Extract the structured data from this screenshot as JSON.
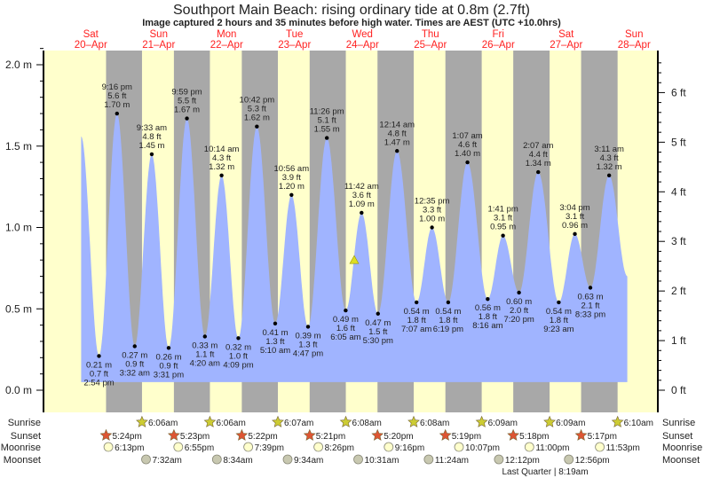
{
  "header": {
    "title": "Southport Main Beach: rising  ordinary tide at 0.8m (2.7ft)",
    "subtitle": "Image captured 2 hours and 35 minutes before high water. Times are AEST (UTC +10.0hrs)"
  },
  "colors": {
    "day": "#ffffcc",
    "night": "#a8a8a8",
    "tide": "#a0b4ff",
    "day_label": "#ff2020",
    "sunrise": "#cccc33",
    "sunset": "#dd5533",
    "moonrise": "#ffffcc",
    "moonset": "#c8c8b0"
  },
  "chart_data": {
    "type": "area",
    "title": "Southport Main Beach: rising  ordinary tide at 0.8m (2.7ft)",
    "time_unit": "hours since Sat 20-Apr 00:00 AEST",
    "days": [
      {
        "dow": "Sat",
        "date": "20–Apr"
      },
      {
        "dow": "Sun",
        "date": "21–Apr"
      },
      {
        "dow": "Mon",
        "date": "22–Apr"
      },
      {
        "dow": "Tue",
        "date": "23–Apr"
      },
      {
        "dow": "Wed",
        "date": "24–Apr"
      },
      {
        "dow": "Thu",
        "date": "25–Apr"
      },
      {
        "dow": "Fri",
        "date": "26–Apr"
      },
      {
        "dow": "Sat",
        "date": "27–Apr"
      },
      {
        "dow": "Sun",
        "date": "28–Apr"
      }
    ],
    "y_left": {
      "ticks": [
        "0.0 m",
        "0.5 m",
        "1.0 m",
        "1.5 m",
        "2.0 m"
      ],
      "values": [
        0,
        0.5,
        1.0,
        1.5,
        2.0
      ],
      "ylim": [
        -0.09,
        2.1
      ]
    },
    "y_right": {
      "ticks": [
        "0 ft",
        "1 ft",
        "2 ft",
        "3 ft",
        "4 ft",
        "5 ft",
        "6 ft"
      ],
      "values": [
        0,
        1,
        2,
        3,
        4,
        5,
        6
      ]
    },
    "curve_start": {
      "t": 8.6,
      "m": 1.56
    },
    "curve_end": {
      "t": 201.6,
      "m": 0.7
    },
    "extremes": [
      {
        "type": "low",
        "t": 14.9,
        "time": "2:54 pm",
        "ft": "0.7 ft",
        "m": "0.21 m",
        "v": 0.21
      },
      {
        "type": "high",
        "t": 21.27,
        "time": "9:16 pm",
        "ft": "5.6 ft",
        "m": "1.70 m",
        "v": 1.7
      },
      {
        "type": "low",
        "t": 27.53,
        "time": "3:32 am",
        "ft": "0.9 ft",
        "m": "0.27 m",
        "v": 0.27
      },
      {
        "type": "high",
        "t": 33.55,
        "time": "9:33 am",
        "ft": "4.8 ft",
        "m": "1.45 m",
        "v": 1.45
      },
      {
        "type": "low",
        "t": 39.52,
        "time": "3:31 pm",
        "ft": "0.9 ft",
        "m": "0.26 m",
        "v": 0.26
      },
      {
        "type": "high",
        "t": 45.98,
        "time": "9:59 pm",
        "ft": "5.5 ft",
        "m": "1.67 m",
        "v": 1.67
      },
      {
        "type": "low",
        "t": 52.33,
        "time": "4:20 am",
        "ft": "1.1 ft",
        "m": "0.33 m",
        "v": 0.33
      },
      {
        "type": "high",
        "t": 58.23,
        "time": "10:14 am",
        "ft": "4.3 ft",
        "m": "1.32 m",
        "v": 1.32
      },
      {
        "type": "low",
        "t": 64.15,
        "time": "4:09 pm",
        "ft": "1.0 ft",
        "m": "0.32 m",
        "v": 0.32
      },
      {
        "type": "high",
        "t": 70.7,
        "time": "10:42 pm",
        "ft": "5.3 ft",
        "m": "1.62 m",
        "v": 1.62
      },
      {
        "type": "low",
        "t": 77.17,
        "time": "5:10 am",
        "ft": "1.3 ft",
        "m": "0.41 m",
        "v": 0.41
      },
      {
        "type": "high",
        "t": 82.93,
        "time": "10:56 am",
        "ft": "3.9 ft",
        "m": "1.20 m",
        "v": 1.2
      },
      {
        "type": "low",
        "t": 88.78,
        "time": "4:47 pm",
        "ft": "1.3 ft",
        "m": "0.39 m",
        "v": 0.39
      },
      {
        "type": "high",
        "t": 95.43,
        "time": "11:26 pm",
        "ft": "5.1 ft",
        "m": "1.55 m",
        "v": 1.55
      },
      {
        "type": "low",
        "t": 102.08,
        "time": "6:05 am",
        "ft": "1.6 ft",
        "m": "0.49 m",
        "v": 0.49
      },
      {
        "type": "high",
        "t": 107.7,
        "time": "11:42 am",
        "ft": "3.6 ft",
        "m": "1.09 m",
        "v": 1.09
      },
      {
        "type": "low",
        "t": 113.5,
        "time": "5:30 pm",
        "ft": "1.5 ft",
        "m": "0.47 m",
        "v": 0.47
      },
      {
        "type": "high",
        "t": 120.23,
        "time": "12:14 am",
        "ft": "4.8 ft",
        "m": "1.47 m",
        "v": 1.47
      },
      {
        "type": "low",
        "t": 127.12,
        "time": "7:07 am",
        "ft": "1.8 ft",
        "m": "0.54 m",
        "v": 0.54
      },
      {
        "type": "high",
        "t": 132.58,
        "time": "12:35 pm",
        "ft": "3.3 ft",
        "m": "1.00 m",
        "v": 1.0
      },
      {
        "type": "low",
        "t": 138.32,
        "time": "6:19 pm",
        "ft": "1.8 ft",
        "m": "0.54 m",
        "v": 0.54
      },
      {
        "type": "high",
        "t": 145.12,
        "time": "1:07 am",
        "ft": "4.6 ft",
        "m": "1.40 m",
        "v": 1.4
      },
      {
        "type": "low",
        "t": 152.27,
        "time": "8:16 am",
        "ft": "1.8 ft",
        "m": "0.56 m",
        "v": 0.56
      },
      {
        "type": "high",
        "t": 157.68,
        "time": "1:41 pm",
        "ft": "3.1 ft",
        "m": "0.95 m",
        "v": 0.95
      },
      {
        "type": "low",
        "t": 163.33,
        "time": "7:20 pm",
        "ft": "2.0 ft",
        "m": "0.60 m",
        "v": 0.6
      },
      {
        "type": "high",
        "t": 170.12,
        "time": "2:07 am",
        "ft": "4.4 ft",
        "m": "1.34 m",
        "v": 1.34
      },
      {
        "type": "low",
        "t": 177.38,
        "time": "9:23 am",
        "ft": "1.8 ft",
        "m": "0.54 m",
        "v": 0.54
      },
      {
        "type": "high",
        "t": 183.07,
        "time": "3:04 pm",
        "ft": "3.1 ft",
        "m": "0.96 m",
        "v": 0.96
      },
      {
        "type": "low",
        "t": 188.55,
        "time": "8:33 pm",
        "ft": "2.1 ft",
        "m": "0.63 m",
        "v": 0.63
      },
      {
        "type": "high",
        "t": 195.18,
        "time": "3:11 am",
        "ft": "4.3 ft",
        "m": "1.32 m",
        "v": 1.32
      }
    ],
    "current": {
      "t": 105.1,
      "m": 0.8
    },
    "rows": {
      "labels": {
        "sunrise": "Sunrise",
        "sunset": "Sunset",
        "moonrise": "Moonrise",
        "moonset": "Moonset"
      },
      "sunrise": [
        {
          "t": 30.1,
          "label": "6:06am"
        },
        {
          "t": 54.1,
          "label": "6:06am"
        },
        {
          "t": 78.12,
          "label": "6:07am"
        },
        {
          "t": 102.13,
          "label": "6:08am"
        },
        {
          "t": 126.13,
          "label": "6:08am"
        },
        {
          "t": 150.15,
          "label": "6:09am"
        },
        {
          "t": 174.15,
          "label": "6:09am"
        },
        {
          "t": 198.17,
          "label": "6:10am"
        }
      ],
      "sunset": [
        {
          "t": 17.4,
          "label": "5:24pm"
        },
        {
          "t": 41.38,
          "label": "5:23pm"
        },
        {
          "t": 65.37,
          "label": "5:22pm"
        },
        {
          "t": 89.35,
          "label": "5:21pm"
        },
        {
          "t": 113.33,
          "label": "5:20pm"
        },
        {
          "t": 137.32,
          "label": "5:19pm"
        },
        {
          "t": 161.3,
          "label": "5:18pm"
        },
        {
          "t": 185.28,
          "label": "5:17pm"
        }
      ],
      "moonrise": [
        {
          "t": 18.22,
          "label": "6:13pm"
        },
        {
          "t": 42.92,
          "label": "6:55pm"
        },
        {
          "t": 67.65,
          "label": "7:39pm"
        },
        {
          "t": 92.43,
          "label": "8:26pm"
        },
        {
          "t": 117.27,
          "label": "9:16pm"
        },
        {
          "t": 142.12,
          "label": "10:07pm"
        },
        {
          "t": 167.0,
          "label": "11:00pm"
        },
        {
          "t": 191.88,
          "label": "11:53pm"
        }
      ],
      "moonset": [
        {
          "t": 31.53,
          "label": "7:32am"
        },
        {
          "t": 56.57,
          "label": "8:34am"
        },
        {
          "t": 81.57,
          "label": "9:34am"
        },
        {
          "t": 106.52,
          "label": "10:31am"
        },
        {
          "t": 131.4,
          "label": "11:24am"
        },
        {
          "t": 156.2,
          "label": "12:12pm"
        },
        {
          "t": 180.93,
          "label": "12:56pm"
        }
      ]
    },
    "moon_phase": "Last Quarter | 8:19am"
  }
}
